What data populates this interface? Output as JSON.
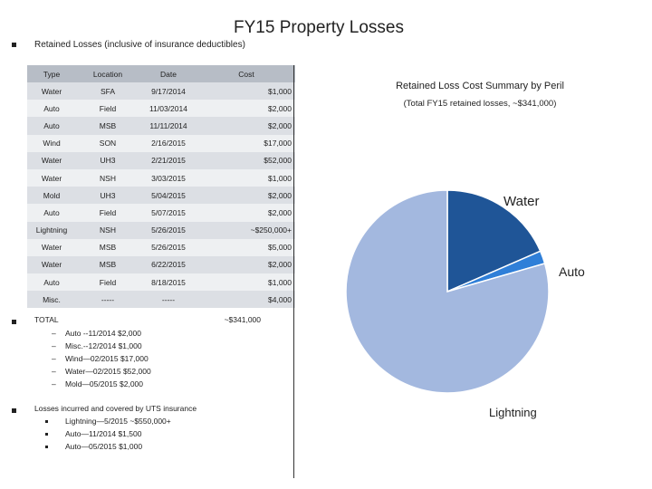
{
  "title": "FY15 Property Losses",
  "heading": "Retained Losses (inclusive of insurance deductibles)",
  "table": {
    "headers": [
      "Type",
      "Location",
      "Date",
      "Cost"
    ],
    "rows": [
      [
        "Water",
        "SFA",
        "9/17/2014",
        "$1,000"
      ],
      [
        "Auto",
        "Field",
        "11/03/2014",
        "$2,000"
      ],
      [
        "Auto",
        "MSB",
        "11/11/2014",
        "$2,000"
      ],
      [
        "Wind",
        "SON",
        "2/16/2015",
        "$17,000"
      ],
      [
        "Water",
        "UH3",
        "2/21/2015",
        "$52,000"
      ],
      [
        "Water",
        "NSH",
        "3/03/2015",
        "$1,000"
      ],
      [
        "Mold",
        "UH3",
        "5/04/2015",
        "$2,000"
      ],
      [
        "Auto",
        "Field",
        "5/07/2015",
        "$2,000"
      ],
      [
        "Lightning",
        "NSH",
        "5/26/2015",
        "~$250,000+"
      ],
      [
        "Water",
        "MSB",
        "5/26/2015",
        "$5,000"
      ],
      [
        "Water",
        "MSB",
        "6/22/2015",
        "$2,000"
      ],
      [
        "Auto",
        "Field",
        "8/18/2015",
        "$1,000"
      ],
      [
        "Misc.",
        "-----",
        "-----",
        "$4,000"
      ]
    ]
  },
  "total": {
    "label": "TOTAL",
    "value": "~$341,000"
  },
  "total_items": [
    "Auto --11/2014 $2,000",
    "Misc.--12/2014 $1,000",
    "Wind—02/2015 $17,000",
    "Water—02/2015 $52,000",
    "Mold—05/2015 $2,000"
  ],
  "insurance": {
    "heading": "Losses incurred and covered by UTS insurance",
    "items": [
      "Lightning—5/2015 ~$550,000+",
      "Auto—11/2014 $1,500",
      "Auto—05/2015 $1,000"
    ]
  },
  "chart_data": {
    "type": "pie",
    "title": "Retained Loss Cost Summary by Peril",
    "subtitle": "(Total FY15 retained losses, ~$341,000)",
    "slices": [
      {
        "label": "Water",
        "value": 63000,
        "color": "#1f5597"
      },
      {
        "label": "Auto",
        "value": 7000,
        "color": "#2f7fd8"
      },
      {
        "label": "Lightning",
        "value": 271000,
        "color": "#a3b8df"
      }
    ]
  }
}
